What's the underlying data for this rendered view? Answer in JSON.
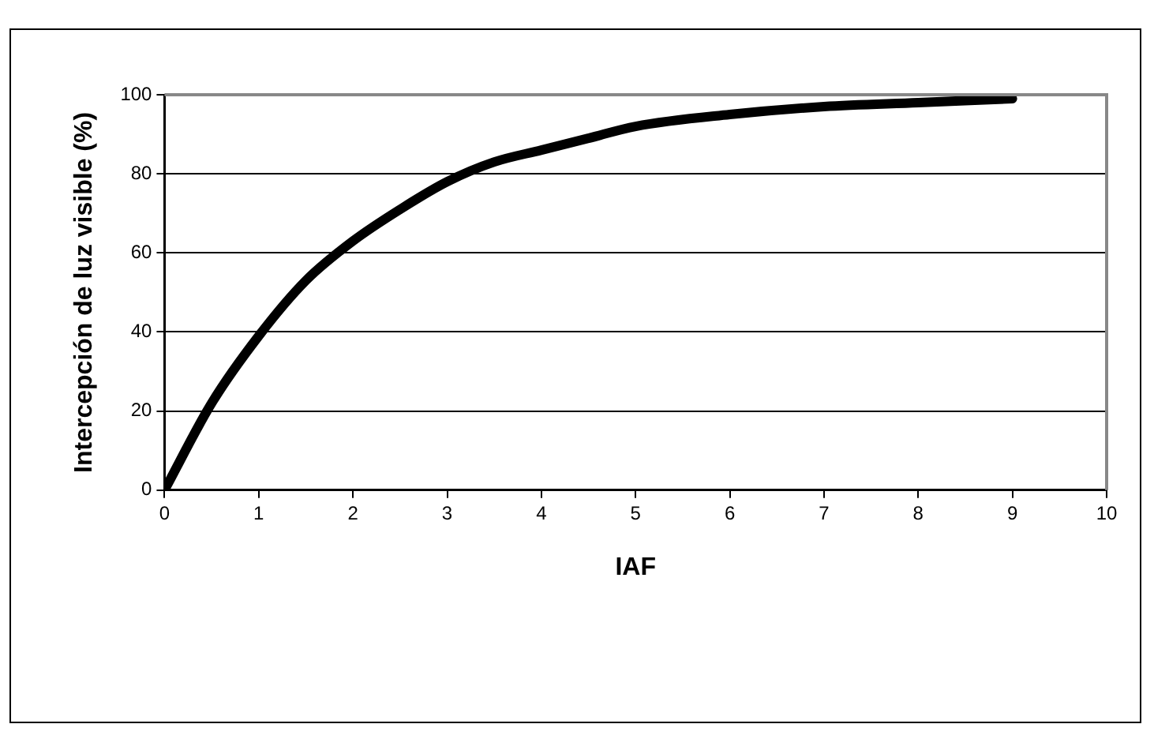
{
  "chart_data": {
    "type": "line",
    "xlabel": "IAF",
    "ylabel": "Intercepción de luz visible (%)",
    "x": [
      0,
      0.5,
      1,
      1.5,
      2,
      2.5,
      3,
      3.5,
      4,
      4.5,
      5,
      6,
      7,
      8,
      9
    ],
    "series": [
      {
        "color": "#000000",
        "values": [
          0,
          22,
          39,
          53,
          63,
          71,
          78,
          83,
          86,
          89,
          92,
          95,
          97,
          98,
          99
        ]
      }
    ],
    "xlim": [
      0,
      10
    ],
    "xticks": [
      0,
      1,
      2,
      3,
      4,
      5,
      6,
      7,
      8,
      9,
      10
    ],
    "ylim": [
      0,
      100
    ],
    "yticks": [
      0,
      20,
      40,
      60,
      80,
      100
    ],
    "grid": "y",
    "legend": false,
    "marker": "none",
    "line_style": "solid"
  }
}
